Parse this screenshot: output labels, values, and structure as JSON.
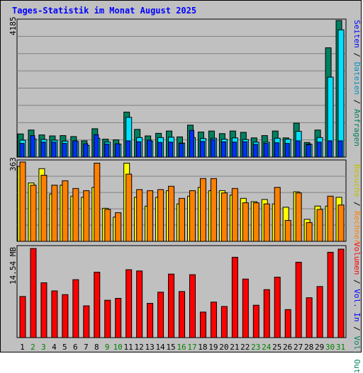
{
  "title": "Tages-Statistik im Monat August 2025",
  "colors": {
    "anfragen": "#008060",
    "dateien": "#00e0ff",
    "seiten": "#0030ff",
    "besuche": "#ffff00",
    "rechner": "#ff8000",
    "volumen": "#ff0000",
    "grid": "#808080",
    "text_dark": "#000000",
    "day_weekend": "#008000"
  },
  "chart_data": [
    {
      "type": "bar",
      "panel": "top",
      "ymax_label": "4185",
      "ylim": [
        0,
        4185
      ],
      "grid": true,
      "legend": [
        "Anfragen",
        "Dateien",
        "Seiten"
      ],
      "series": [
        {
          "name": "Anfragen",
          "values": [
            710,
            830,
            680,
            650,
            660,
            630,
            500,
            870,
            550,
            530,
            1380,
            850,
            650,
            730,
            800,
            620,
            980,
            770,
            800,
            720,
            800,
            760,
            590,
            660,
            800,
            590,
            1040,
            450,
            830,
            3350,
            4185
          ]
        },
        {
          "name": "Dateien",
          "values": [
            520,
            560,
            540,
            520,
            490,
            480,
            360,
            580,
            460,
            400,
            1220,
            600,
            490,
            600,
            610,
            430,
            600,
            570,
            580,
            550,
            590,
            540,
            460,
            460,
            580,
            550,
            790,
            400,
            600,
            2450,
            3900
          ]
        },
        {
          "name": "Seiten",
          "values": [
            420,
            660,
            460,
            460,
            420,
            500,
            410,
            690,
            400,
            410,
            500,
            470,
            520,
            450,
            460,
            420,
            820,
            480,
            540,
            470,
            460,
            470,
            390,
            420,
            440,
            420,
            500,
            380,
            460,
            500,
            500
          ]
        }
      ]
    },
    {
      "type": "bar",
      "panel": "middle",
      "ymax_label": "363",
      "ylim": [
        0,
        363
      ],
      "grid": true,
      "legend": [
        "Besuche",
        "Rechner"
      ],
      "series": [
        {
          "name": "Besuche",
          "values": [
            340,
            265,
            330,
            215,
            255,
            205,
            200,
            245,
            150,
            110,
            355,
            200,
            160,
            200,
            230,
            170,
            205,
            245,
            230,
            230,
            210,
            195,
            180,
            190,
            170,
            155,
            225,
            100,
            160,
            160,
            200
          ]
        },
        {
          "name": "Rechner",
          "values": [
            360,
            255,
            300,
            255,
            275,
            240,
            230,
            355,
            145,
            130,
            305,
            235,
            230,
            235,
            250,
            195,
            230,
            285,
            285,
            220,
            240,
            175,
            175,
            170,
            245,
            95,
            220,
            85,
            145,
            205,
            165
          ]
        }
      ]
    },
    {
      "type": "bar",
      "panel": "bottom",
      "ymax_label": "14.54 MB",
      "ylim": [
        0,
        14.54
      ],
      "grid": false,
      "legend": [
        "Volumen",
        "Vol. In",
        "Vol. Out"
      ],
      "series": [
        {
          "name": "Volumen",
          "values": [
            6.6,
            14.3,
            8.8,
            7.5,
            6.9,
            9.3,
            5.1,
            10.5,
            6.0,
            6.3,
            10.9,
            10.7,
            5.5,
            7.3,
            10.2,
            7.4,
            10.1,
            4.1,
            5.7,
            5.0,
            12.9,
            9.4,
            5.2,
            7.7,
            9.7,
            4.5,
            12.1,
            6.4,
            8.2,
            13.7,
            14.2
          ]
        }
      ]
    }
  ],
  "days": [
    {
      "label": "1",
      "weekend": false
    },
    {
      "label": "2",
      "weekend": true
    },
    {
      "label": "3",
      "weekend": true
    },
    {
      "label": "4",
      "weekend": false
    },
    {
      "label": "5",
      "weekend": false
    },
    {
      "label": "6",
      "weekend": false
    },
    {
      "label": "7",
      "weekend": false
    },
    {
      "label": "8",
      "weekend": false
    },
    {
      "label": "9",
      "weekend": true
    },
    {
      "label": "10",
      "weekend": true
    },
    {
      "label": "11",
      "weekend": false
    },
    {
      "label": "12",
      "weekend": false
    },
    {
      "label": "13",
      "weekend": false
    },
    {
      "label": "14",
      "weekend": false
    },
    {
      "label": "15",
      "weekend": false
    },
    {
      "label": "16",
      "weekend": true
    },
    {
      "label": "17",
      "weekend": true
    },
    {
      "label": "18",
      "weekend": false
    },
    {
      "label": "19",
      "weekend": false
    },
    {
      "label": "20",
      "weekend": false
    },
    {
      "label": "21",
      "weekend": false
    },
    {
      "label": "22",
      "weekend": false
    },
    {
      "label": "23",
      "weekend": true
    },
    {
      "label": "24",
      "weekend": true
    },
    {
      "label": "25",
      "weekend": false
    },
    {
      "label": "26",
      "weekend": false
    },
    {
      "label": "27",
      "weekend": false
    },
    {
      "label": "28",
      "weekend": false
    },
    {
      "label": "29",
      "weekend": false
    },
    {
      "label": "30",
      "weekend": true
    },
    {
      "label": "31",
      "weekend": true
    }
  ]
}
